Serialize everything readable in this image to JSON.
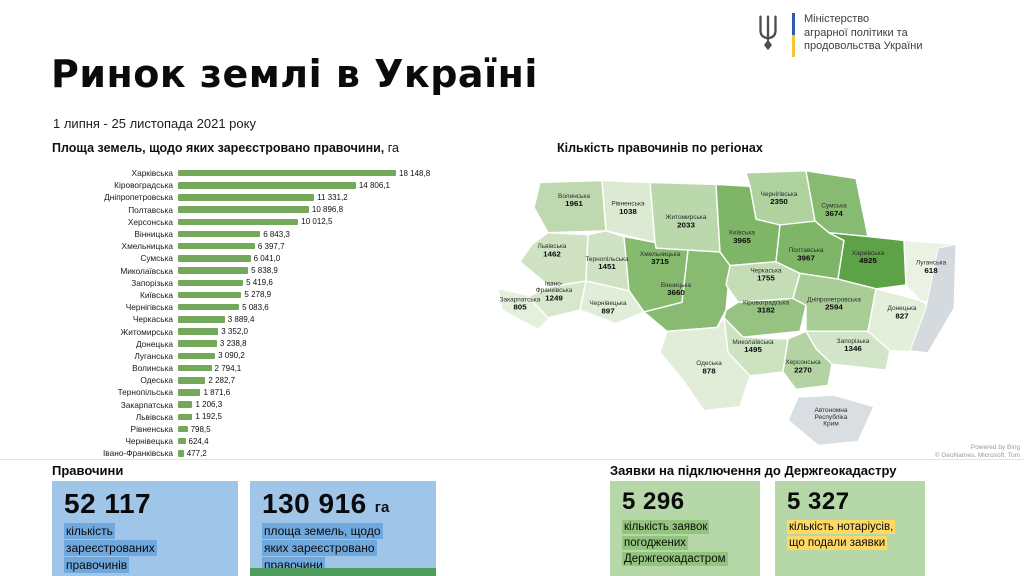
{
  "header": {
    "title": "Ринок землі в Україні",
    "period": "1 липня - 25 листопада 2021 року",
    "ministry_lines": [
      "Міністерство",
      "аграрної політики та",
      "продовольства України"
    ]
  },
  "chart_data": [
    {
      "type": "bar",
      "orientation": "horizontal",
      "title": "Площа земель, щодо яких зареєстровано правочини, га",
      "title_main": "Площа земель, щодо яких зареєстровано правочини,",
      "title_unit": " га",
      "unit": "га",
      "xlim": [
        0,
        18500
      ],
      "bar_color": "#74a95c",
      "categories": [
        "Харківська",
        "Кіровоградська",
        "Дніпропетровська",
        "Полтавська",
        "Херсонська",
        "Вінницька",
        "Хмельницька",
        "Сумська",
        "Миколаївська",
        "Запорізька",
        "Київська",
        "Чернігівська",
        "Черкаська",
        "Житомирська",
        "Донецька",
        "Луганська",
        "Волинська",
        "Одеська",
        "Тернопільська",
        "Закарпатська",
        "Львівська",
        "Рівненська",
        "Чернівецька",
        "Івано-Франківська"
      ],
      "values": [
        18148.8,
        14806.1,
        11331.2,
        10896.8,
        10012.5,
        6843.3,
        6397.7,
        6041.0,
        5838.9,
        5419.6,
        5278.9,
        5083.6,
        3889.4,
        3352.0,
        3238.8,
        3090.2,
        2794.1,
        2282.7,
        1871.6,
        1206.3,
        1192.5,
        798.5,
        624.4,
        477.2
      ],
      "value_labels": [
        "18 148,8",
        "14 806,1",
        "11 331,2",
        "10 896,8",
        "10 012,5",
        "6 843,3",
        "6 397,7",
        "6 041,0",
        "5 838,9",
        "5 419,6",
        "5 278,9",
        "5 083,6",
        "3 889,4",
        "3 352,0",
        "3 238,8",
        "3 090,2",
        "2 794,1",
        "2 282,7",
        "1 871,6",
        "1 206,3",
        "1 192,5",
        "798,5",
        "624,4",
        "477,2"
      ]
    },
    {
      "type": "heatmap",
      "subtype": "choropleth-map",
      "title": "Кількість правочинів по регіонах",
      "regions": [
        {
          "id": "volyn",
          "name": "Волинська",
          "value": 1961,
          "color": "#bed9af"
        },
        {
          "id": "rivne",
          "name": "Рівненська",
          "value": 1038,
          "color": "#dcead3"
        },
        {
          "id": "zhytomyr",
          "name": "Житомирська",
          "value": 2033,
          "color": "#bbd8ac"
        },
        {
          "id": "chernihiv",
          "name": "Чернігівська",
          "value": 2350,
          "color": "#b0d29f"
        },
        {
          "id": "sumy",
          "name": "Сумська",
          "value": 3674,
          "color": "#87bb71"
        },
        {
          "id": "kyiv",
          "name": "Київська",
          "value": 3965,
          "color": "#7eb566"
        },
        {
          "id": "lviv",
          "name": "Львівська",
          "value": 1462,
          "color": "#cfe3c3"
        },
        {
          "id": "ternopil",
          "name": "Тернопільська",
          "value": 1451,
          "color": "#cfe3c4"
        },
        {
          "id": "khmelnytska",
          "name": "Хмельницька",
          "value": 3715,
          "color": "#86ba6f"
        },
        {
          "id": "vinnytska",
          "name": "Вінницька",
          "value": 3660,
          "color": "#88bb71"
        },
        {
          "id": "cherkaska",
          "name": "Черкаська",
          "value": 1755,
          "color": "#c5ddb7"
        },
        {
          "id": "poltavska",
          "name": "Полтавська",
          "value": 3967,
          "color": "#7eb566"
        },
        {
          "id": "kharkivska",
          "name": "Харківська",
          "value": 4925,
          "color": "#5da247"
        },
        {
          "id": "luhanska",
          "name": "Луганська",
          "value": 618,
          "color": "#e9f2e3"
        },
        {
          "id": "kirovohradska",
          "name": "Кіровоградська",
          "value": 3182,
          "color": "#96c382"
        },
        {
          "id": "dnipropetrovska",
          "name": "Дніпропетровська",
          "value": 2594,
          "color": "#a8cd96"
        },
        {
          "id": "donetska",
          "name": "Донецька",
          "value": 827,
          "color": "#e3eedb"
        },
        {
          "id": "zaporizka",
          "name": "Запорізька",
          "value": 1346,
          "color": "#d3e5c8"
        },
        {
          "id": "mykolaivska",
          "name": "Миколаївська",
          "value": 1495,
          "color": "#cde2c1"
        },
        {
          "id": "khersonska",
          "name": "Херсонська",
          "value": 2270,
          "color": "#b3d3a2"
        },
        {
          "id": "odeska",
          "name": "Одеська",
          "value": 878,
          "color": "#e1edd9"
        },
        {
          "id": "zakarpatska",
          "name": "Закарпатська",
          "value": 805,
          "color": "#e4efdc"
        },
        {
          "id": "ivano_frankivska",
          "name": "Івано-Франківська",
          "value": 1249,
          "color": "#d6e7cc"
        },
        {
          "id": "chernivetska",
          "name": "Чернівецька",
          "value": 897,
          "color": "#e0edd8"
        },
        {
          "id": "krym",
          "name": "Автономна Республіка Крим",
          "value": null,
          "color": "#d9dee3"
        }
      ]
    }
  ],
  "map": {
    "attribution": [
      "Powered by Bing",
      "© GeoNames, Microsoft, Tom"
    ]
  },
  "transactions": {
    "heading": "Правочини",
    "cards": [
      {
        "value": "52 117",
        "lines": [
          "кількість",
          "зареєстрованих",
          "правочинів"
        ]
      },
      {
        "value": "130 916",
        "unit": "га",
        "lines": [
          "площа земель, щодо",
          "яких зареєстровано",
          "правочини"
        ]
      }
    ]
  },
  "applications": {
    "heading": "Заявки на підключення до Держгеокадастру",
    "cards": [
      {
        "value": "5 296",
        "lines": [
          "кількість заявок",
          "погоджених",
          "Держгеокадастром"
        ]
      },
      {
        "value": "5 327",
        "lines": [
          "кількість нотаріусів,",
          "що подали заявки"
        ]
      }
    ]
  }
}
